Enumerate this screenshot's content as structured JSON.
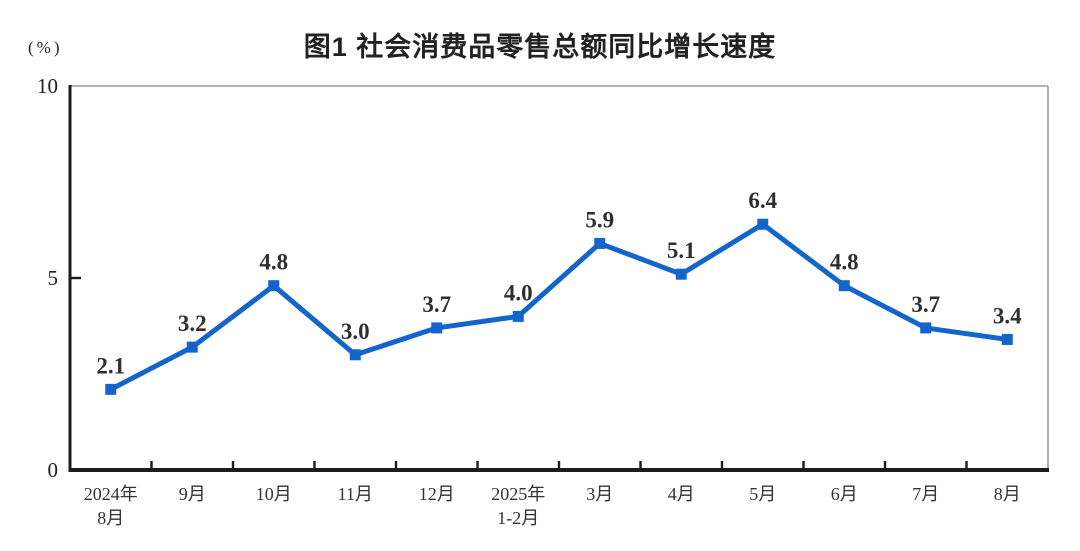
{
  "figure": {
    "title": "图1 社会消费品零售总额同比增长速度",
    "unit_label": "(%)"
  },
  "chart_data": {
    "type": "line",
    "title": "图1 社会消费品零售总额同比增长速度",
    "unit": "(%)",
    "categories": [
      "2024年8月",
      "9月",
      "10月",
      "11月",
      "12月",
      "2025年1-2月",
      "3月",
      "4月",
      "5月",
      "6月",
      "7月",
      "8月"
    ],
    "x_label_lines": [
      [
        "2024年",
        "8月"
      ],
      [
        "9月"
      ],
      [
        "10月"
      ],
      [
        "11月"
      ],
      [
        "12月"
      ],
      [
        "2025年",
        "1-2月"
      ],
      [
        "3月"
      ],
      [
        "4月"
      ],
      [
        "5月"
      ],
      [
        "6月"
      ],
      [
        "7月"
      ],
      [
        "8月"
      ]
    ],
    "values": [
      2.1,
      3.2,
      4.8,
      3.0,
      3.7,
      4.0,
      5.9,
      5.1,
      6.4,
      4.8,
      3.7,
      3.4
    ],
    "point_labels": [
      "2.1",
      "3.2",
      "4.8",
      "3.0",
      "3.7",
      "4.0",
      "5.9",
      "5.1",
      "6.4",
      "4.8",
      "3.7",
      "3.4"
    ],
    "y_tick_labels": [
      "0",
      "5",
      "10"
    ],
    "y_tick_values": [
      0,
      5,
      10
    ],
    "ylim": [
      0,
      10
    ],
    "grid": false,
    "legend": "none",
    "marker": "square",
    "colors": {
      "line": "#1365CB",
      "marker": "#1365CB",
      "point_label": "#2f2f2f",
      "axis": "#1c1c1c",
      "axis_text": "#222222",
      "plot_border": "#9b9b9b"
    }
  }
}
